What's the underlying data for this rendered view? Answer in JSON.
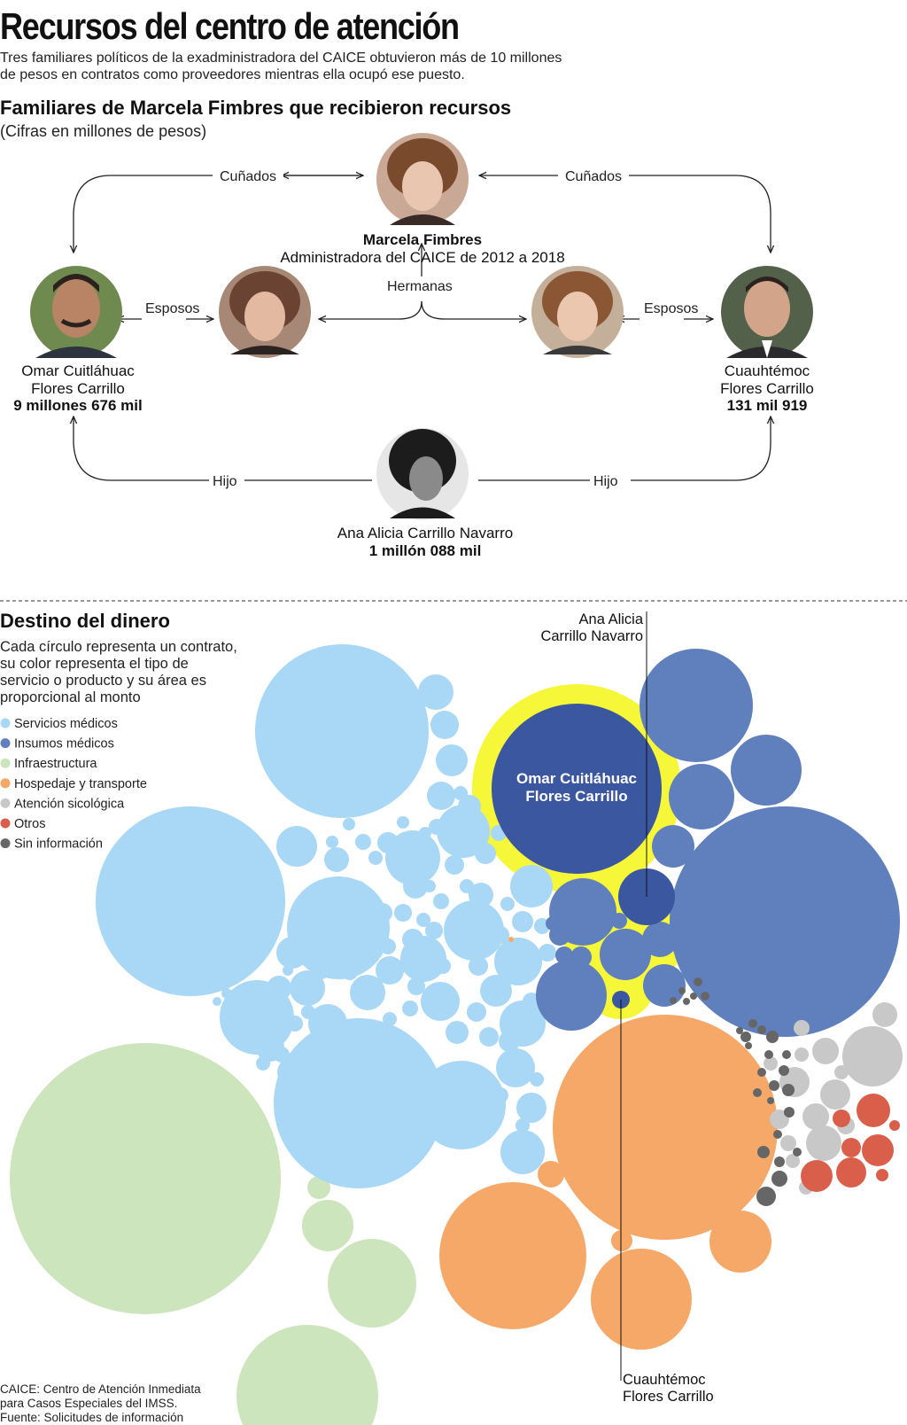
{
  "title": "Recursos del centro de atención",
  "intro": [
    "Tres familiares políticos de la exadministradora del CAICE obtuvieron más de 10 millones",
    "de pesos en contratos como proveedores mientras ella ocupó ese puesto."
  ],
  "family": {
    "heading": "Familiares de Marcela Fimbres que recibieron recursos",
    "subheading": "(Cifras en millones de pesos)",
    "marcela": {
      "name": "Marcela Fimbres",
      "role": "Administradora del CAICE de 2012 a 2018"
    },
    "omar": {
      "name_lines": [
        "Omar Cuitláhuac",
        "Flores Carrillo"
      ],
      "amount": "9 millones 676 mil"
    },
    "cuauhtemoc": {
      "name_lines": [
        "Cuauhtémoc",
        "Flores Carrillo"
      ],
      "amount": "131 mil 919"
    },
    "ana": {
      "name": "Ana Alicia Carrillo Navarro",
      "amount": "1 millón 088 mil"
    },
    "relations": {
      "cunados_left": "Cuñados",
      "cunados_right": "Cuñados",
      "esposos_left": "Esposos",
      "esposos_right": "Esposos",
      "hermanas": "Hermanas",
      "hijo_left": "Hijo",
      "hijo_right": "Hijo"
    }
  },
  "destino": {
    "heading": "Destino del dinero",
    "description": [
      "Cada círculo representa un contrato,",
      "su color representa el tipo de",
      "servicio o producto y su área es",
      "proporcional al monto"
    ],
    "legend": [
      {
        "label": "Servicios médicos",
        "color": "#a8d8f5"
      },
      {
        "label": "Insumos médicos",
        "color": "#5f7fbd"
      },
      {
        "label": "Infraestructura",
        "color": "#cde5bd"
      },
      {
        "label": "Hospedaje y transporte",
        "color": "#f5a868"
      },
      {
        "label": "Atención sicológica",
        "color": "#c8c8c8"
      },
      {
        "label": "Otros",
        "color": "#d95f4b"
      },
      {
        "label": "Sin información",
        "color": "#666666"
      }
    ],
    "callouts": {
      "omar_label": [
        "Omar Cuitláhuac",
        "Flores Carrillo"
      ],
      "ana_label": [
        "Ana Alicia",
        "Carrillo Navarro"
      ],
      "cuauhtemoc_label": [
        "Cuauhtémoc",
        "Flores Carrillo"
      ]
    },
    "highlight_color": "#f7f73a",
    "omar_contract_color": "#3b57a0"
  },
  "footer": [
    "CAICE: Centro de Atención Inmediata",
    "para Casos Especiales del IMSS.",
    "Fuente: Solicitudes de información"
  ]
}
